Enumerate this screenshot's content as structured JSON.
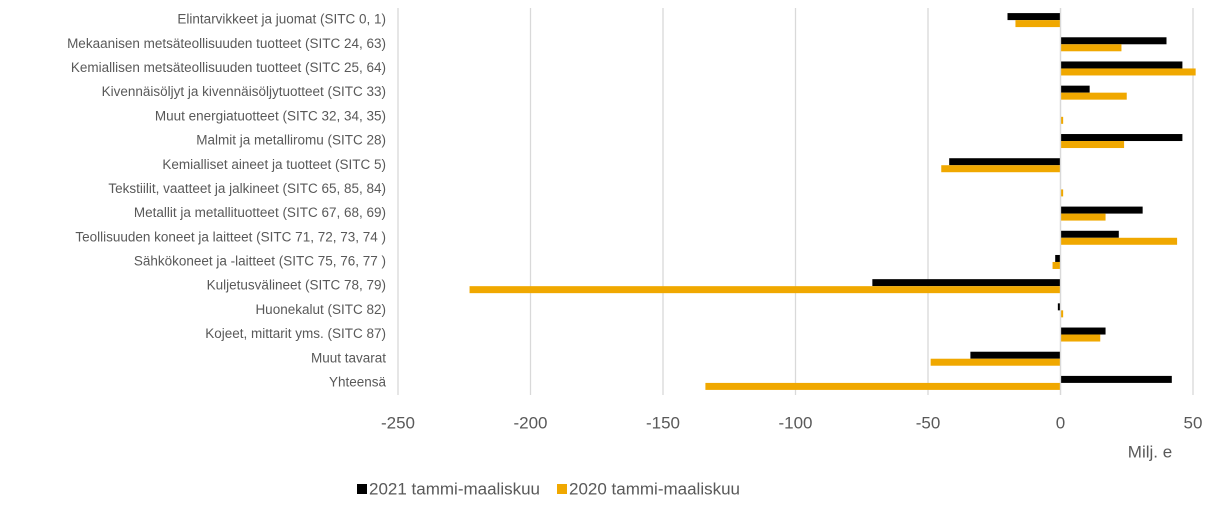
{
  "chart_data": {
    "type": "bar",
    "orientation": "horizontal",
    "categories": [
      "Elintarvikkeet ja juomat (SITC 0, 1)",
      "Mekaanisen metsäteollisuuden tuotteet (SITC 24, 63)",
      "Kemiallisen metsäteollisuuden tuotteet (SITC 25, 64)",
      "Kivennäisöljyt ja kivennäisöljytuotteet (SITC 33)",
      "Muut energiatuotteet (SITC 32, 34, 35)",
      "Malmit ja metalliromu (SITC 28)",
      "Kemialliset aineet ja tuotteet (SITC 5)",
      "Tekstiilit, vaatteet ja jalkineet (SITC 65, 85, 84)",
      "Metallit ja metallituotteet (SITC 67, 68, 69)",
      "Teollisuuden koneet ja laitteet (SITC 71, 72, 73, 74 )",
      "Sähkökoneet ja -laitteet (SITC 75, 76, 77 )",
      "Kuljetusvälineet (SITC 78, 79)",
      "Huonekalut (SITC 82)",
      "Kojeet, mittarit yms. (SITC 87)",
      "Muut tavarat",
      "Yhteensä"
    ],
    "series": [
      {
        "name": "2021 tammi-maaliskuu",
        "color": "#000000",
        "values": [
          -20,
          40,
          46,
          11,
          0,
          46,
          -42,
          0,
          31,
          22,
          -2,
          -71,
          -1,
          17,
          -34,
          42
        ]
      },
      {
        "name": "2020 tammi-maaliskuu",
        "color": "#f0a800",
        "values": [
          -17,
          23,
          51,
          25,
          1,
          24,
          -45,
          1,
          17,
          44,
          -3,
          -223,
          1,
          15,
          -49,
          -134
        ]
      }
    ],
    "xlabel": "Milj. e",
    "xlim": [
      -250,
      50
    ],
    "xticks": [
      -250,
      -200,
      -150,
      -100,
      -50,
      0,
      50
    ],
    "grid": true,
    "legend": "bottom"
  }
}
